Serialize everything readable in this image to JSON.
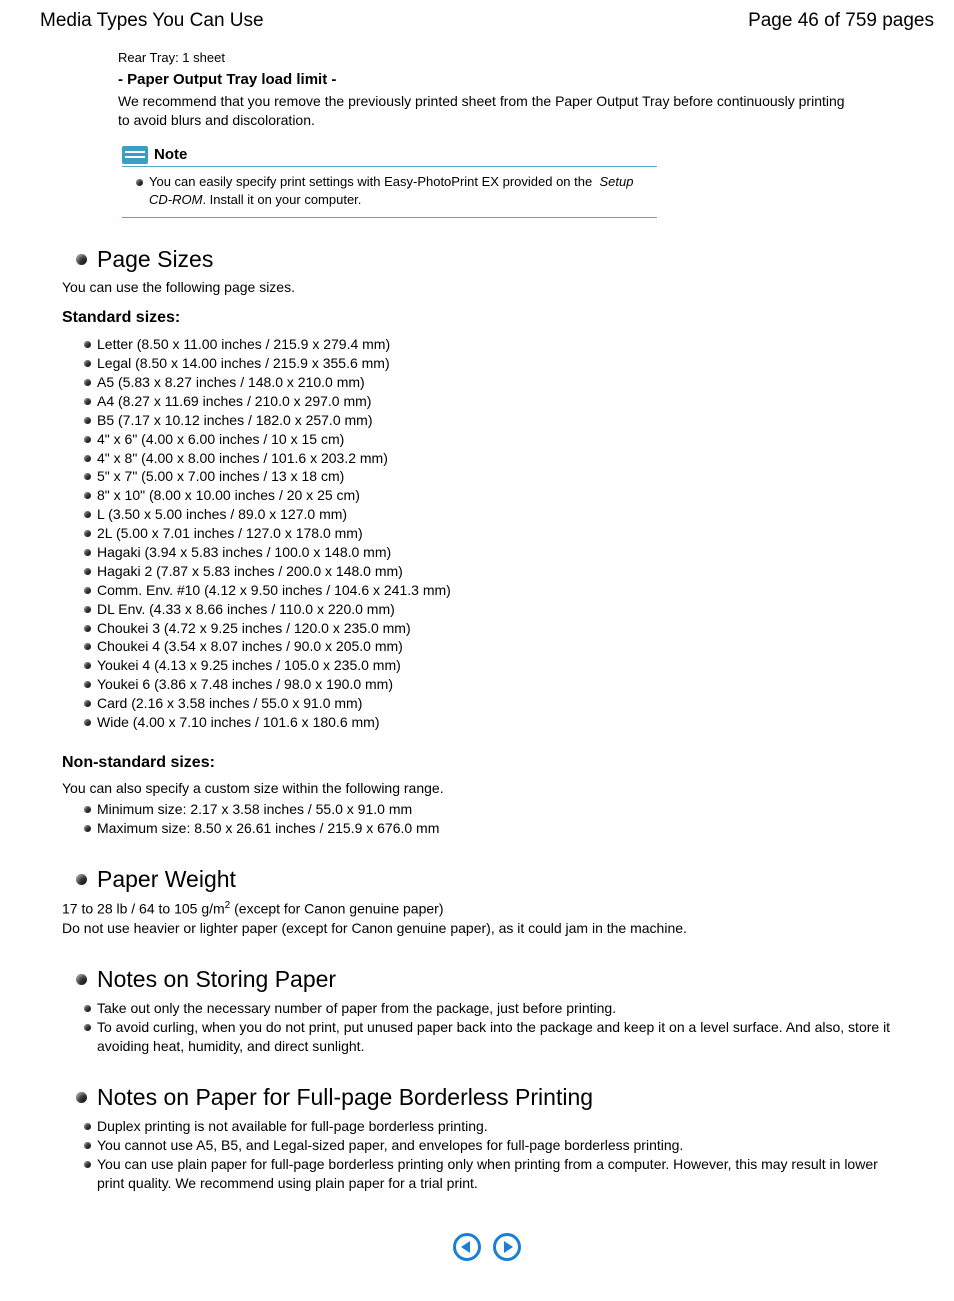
{
  "header": {
    "title": "Media Types You Can Use",
    "page_label": "Page 46 of 759 pages"
  },
  "top": {
    "rear_tray": "Rear Tray: 1 sheet",
    "output_tray_heading": "- Paper Output Tray load limit -",
    "output_tray_body": "We recommend that you remove the previously printed sheet from the Paper Output Tray before continuously printing to avoid blurs and discoloration."
  },
  "note": {
    "title": "Note",
    "line_pre": "You can easily specify print settings with Easy-PhotoPrint EX provided on the",
    "italic": "Setup CD-ROM",
    "line_post": ". Install it on your computer."
  },
  "page_sizes": {
    "heading": "Page Sizes",
    "intro": "You can use the following page sizes.",
    "standard_heading": "Standard sizes:",
    "standard": [
      "Letter (8.50 x 11.00 inches / 215.9 x 279.4 mm)",
      "Legal (8.50 x 14.00 inches / 215.9 x 355.6 mm)",
      "A5 (5.83 x 8.27 inches / 148.0 x 210.0 mm)",
      "A4 (8.27 x 11.69 inches / 210.0 x 297.0 mm)",
      "B5 (7.17 x 10.12 inches / 182.0 x 257.0 mm)",
      "4\" x 6\" (4.00 x 6.00 inches / 10 x 15 cm)",
      "4\" x 8\" (4.00 x 8.00 inches / 101.6 x 203.2 mm)",
      "5\" x 7\" (5.00 x 7.00 inches / 13 x 18 cm)",
      "8\" x 10\" (8.00 x 10.00 inches / 20 x 25 cm)",
      "L (3.50 x 5.00 inches / 89.0 x 127.0 mm)",
      "2L (5.00 x 7.01 inches / 127.0 x 178.0 mm)",
      "Hagaki (3.94 x 5.83 inches / 100.0 x 148.0 mm)",
      "Hagaki 2 (7.87 x 5.83 inches / 200.0 x 148.0 mm)",
      "Comm. Env. #10 (4.12 x 9.50 inches / 104.6 x 241.3 mm)",
      "DL Env. (4.33 x 8.66 inches / 110.0 x 220.0 mm)",
      "Choukei 3 (4.72 x 9.25 inches / 120.0 x 235.0 mm)",
      "Choukei 4 (3.54 x 8.07 inches / 90.0 x 205.0 mm)",
      "Youkei 4 (4.13 x 9.25 inches / 105.0 x 235.0 mm)",
      "Youkei 6 (3.86 x 7.48 inches / 98.0 x 190.0 mm)",
      "Card (2.16 x 3.58 inches / 55.0 x 91.0 mm)",
      "Wide (4.00 x 7.10 inches / 101.6 x 180.6 mm)"
    ],
    "nonstandard_heading": "Non-standard sizes:",
    "nonstandard_intro": "You can also specify a custom size within the following range.",
    "nonstandard": [
      "Minimum size: 2.17 x 3.58 inches / 55.0 x 91.0 mm",
      "Maximum size: 8.50 x 26.61 inches / 215.9 x 676.0 mm"
    ]
  },
  "paper_weight": {
    "heading": "Paper Weight",
    "line1_pre": "17 to 28 lb / 64 to 105 g/m",
    "line1_sup": "2",
    "line1_post": " (except for Canon genuine paper)",
    "line2": "Do not use heavier or lighter paper (except for Canon genuine paper), as it could jam in the machine."
  },
  "storing": {
    "heading": "Notes on Storing Paper",
    "items": [
      "Take out only the necessary number of paper from the package, just before printing.",
      "To avoid curling, when you do not print, put unused paper back into the package and keep it on a level surface. And also, store it avoiding heat, humidity, and direct sunlight."
    ]
  },
  "borderless": {
    "heading": "Notes on Paper for Full-page Borderless Printing",
    "items": [
      "Duplex printing is not available for full-page borderless printing.",
      "You cannot use A5, B5, and Legal-sized paper, and envelopes for full-page borderless printing.",
      "You can use plain paper for full-page borderless printing only when printing from a computer. However, this may result in lower print quality. We recommend using plain paper for a trial print."
    ]
  }
}
